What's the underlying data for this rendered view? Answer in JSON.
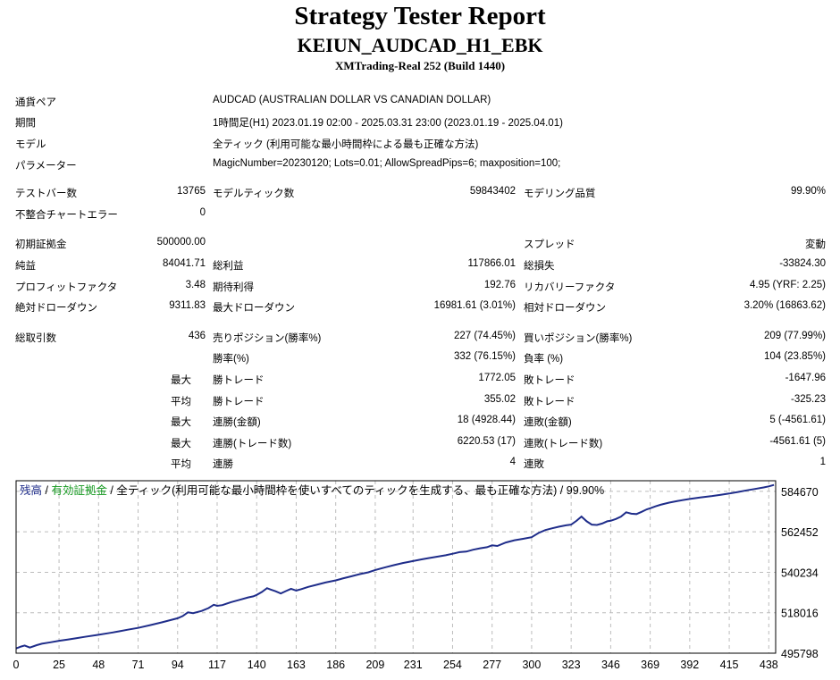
{
  "header": {
    "title": "Strategy Tester Report",
    "subtitle": "KEIUN_AUDCAD_H1_EBK",
    "server": "XMTrading-Real 252 (Build 1440)"
  },
  "settings": {
    "pair_label": "通貨ペア",
    "pair_value": "AUDCAD (AUSTRALIAN DOLLAR VS CANADIAN DOLLAR)",
    "period_label": "期間",
    "period_value": "1時間足(H1) 2023.01.19 02:00 - 2025.03.31 23:00 (2023.01.19 - 2025.04.01)",
    "model_label": "モデル",
    "model_value": "全ティック (利用可能な最小時間枠による最も正確な方法)",
    "params_label": "パラメーター",
    "params_value": "MagicNumber=20230120; Lots=0.01; AllowSpreadPips=6; maxposition=100;"
  },
  "stats": {
    "test_bars_label": "テストバー数",
    "test_bars": "13765",
    "model_ticks_label": "モデルティック数",
    "model_ticks": "59843402",
    "modeling_quality_label": "モデリング品質",
    "modeling_quality": "99.90%",
    "mismatch_label": "不整合チャートエラー",
    "mismatch": "0",
    "initial_deposit_label": "初期証拠金",
    "initial_deposit": "500000.00",
    "spread_label": "スプレッド",
    "spread": "変動",
    "net_profit_label": "純益",
    "net_profit": "84041.71",
    "gross_profit_label": "総利益",
    "gross_profit": "117866.01",
    "gross_loss_label": "総損失",
    "gross_loss": "-33824.30",
    "profit_factor_label": "プロフィットファクタ",
    "profit_factor": "3.48",
    "expected_payoff_label": "期待利得",
    "expected_payoff": "192.76",
    "recovery_factor_label": "リカバリーファクタ",
    "recovery_factor": "4.95 (YRF: 2.25)",
    "abs_drawdown_label": "絶対ドローダウン",
    "abs_drawdown": "9311.83",
    "max_drawdown_label": "最大ドローダウン",
    "max_drawdown": "16981.61 (3.01%)",
    "rel_drawdown_label": "相対ドローダウン",
    "rel_drawdown": "3.20% (16863.62)",
    "total_trades_label": "総取引数",
    "total_trades": "436",
    "short_pos_label": "売りポジション(勝率%)",
    "short_pos": "227 (74.45%)",
    "long_pos_label": "買いポジション(勝率%)",
    "long_pos": "209 (77.99%)",
    "win_rate_label": "勝率(%)",
    "win_rate": "332 (76.15%)",
    "loss_rate_label": "負率 (%)",
    "loss_rate": "104 (23.85%)",
    "max1_label": "最大",
    "largest_win_label": "勝トレード",
    "largest_win": "1772.05",
    "largest_loss_label": "敗トレード",
    "largest_loss": "-1647.96",
    "avg1_label": "平均",
    "avg_win_label": "勝トレード",
    "avg_win": "355.02",
    "avg_loss_label": "敗トレード",
    "avg_loss": "-325.23",
    "max2_label": "最大",
    "max_consec_wins_label": "連勝(金額)",
    "max_consec_wins": "18 (4928.44)",
    "max_consec_losses_label": "連敗(金額)",
    "max_consec_losses": "5 (-4561.61)",
    "max3_label": "最大",
    "max_consec_profit_label": "連勝(トレード数)",
    "max_consec_profit": "6220.53 (17)",
    "max_consec_loss_label": "連敗(トレード数)",
    "max_consec_loss": "-4561.61 (5)",
    "avg2_label": "平均",
    "avg_consec_wins_label": "連勝",
    "avg_consec_wins": "4",
    "avg_consec_losses_label": "連敗",
    "avg_consec_losses": "1"
  },
  "chart_data": {
    "type": "line",
    "legend": {
      "balance": "残高",
      "sep1": " / ",
      "equity": "有効証拠金",
      "sep2": " / ",
      "desc": "全ティック(利用可能な最小時間枠を使いすべてのティックを生成する、最も正確な方法) / 99.90%"
    },
    "colors": {
      "balance": "#1f2d8a",
      "equity": "#14991f",
      "grid": "#bcbcbc",
      "frame": "#000000"
    },
    "xlim": [
      0,
      442
    ],
    "ylim": [
      495798,
      590500
    ],
    "x_ticks": [
      0,
      25,
      48,
      71,
      94,
      117,
      140,
      163,
      186,
      209,
      231,
      254,
      277,
      300,
      323,
      346,
      369,
      392,
      415,
      438
    ],
    "y_ticks": [
      495798,
      518016,
      540234,
      562452,
      584670
    ],
    "series": [
      {
        "name": "残高",
        "x": [
          0,
          3,
          5,
          8,
          12,
          15,
          20,
          25,
          30,
          35,
          40,
          48,
          55,
          60,
          65,
          71,
          78,
          85,
          90,
          94,
          97,
          100,
          103,
          108,
          112,
          115,
          117,
          120,
          125,
          130,
          135,
          138,
          140,
          143,
          146,
          148,
          151,
          154,
          157,
          160,
          163,
          166,
          170,
          175,
          180,
          186,
          190,
          195,
          200,
          205,
          209,
          215,
          220,
          225,
          231,
          236,
          240,
          245,
          250,
          254,
          258,
          262,
          266,
          270,
          274,
          277,
          280,
          285,
          290,
          295,
          300,
          304,
          308,
          312,
          316,
          320,
          323,
          326,
          329,
          332,
          335,
          338,
          341,
          344,
          346,
          349,
          352,
          355,
          358,
          361,
          364,
          367,
          369,
          372,
          375,
          380,
          385,
          392,
          398,
          405,
          410,
          415,
          420,
          425,
          430,
          435,
          438,
          441
        ],
        "values": [
          498400,
          499500,
          500000,
          498900,
          500200,
          501000,
          501800,
          502600,
          503300,
          504000,
          504800,
          505900,
          507000,
          507800,
          508700,
          509700,
          511200,
          512800,
          514000,
          515000,
          516200,
          518200,
          517800,
          519000,
          520600,
          522400,
          521800,
          522200,
          523800,
          525100,
          526400,
          527000,
          527800,
          529400,
          531500,
          530800,
          529800,
          528600,
          529900,
          531200,
          530200,
          531000,
          532200,
          533400,
          534600,
          535800,
          536800,
          538000,
          539200,
          540200,
          541500,
          543000,
          544200,
          545300,
          546400,
          547300,
          548000,
          548800,
          549600,
          550400,
          551300,
          551600,
          552600,
          553400,
          554000,
          555000,
          554700,
          556600,
          557800,
          558600,
          559500,
          561800,
          563400,
          564400,
          565300,
          566000,
          566400,
          568400,
          570800,
          568200,
          566400,
          566200,
          567000,
          568200,
          568500,
          569500,
          570800,
          573200,
          572400,
          572200,
          573400,
          574800,
          575400,
          576400,
          577300,
          578500,
          579400,
          580500,
          581300,
          582100,
          582800,
          583500,
          584300,
          585200,
          586000,
          586800,
          587400,
          588200
        ]
      }
    ]
  }
}
